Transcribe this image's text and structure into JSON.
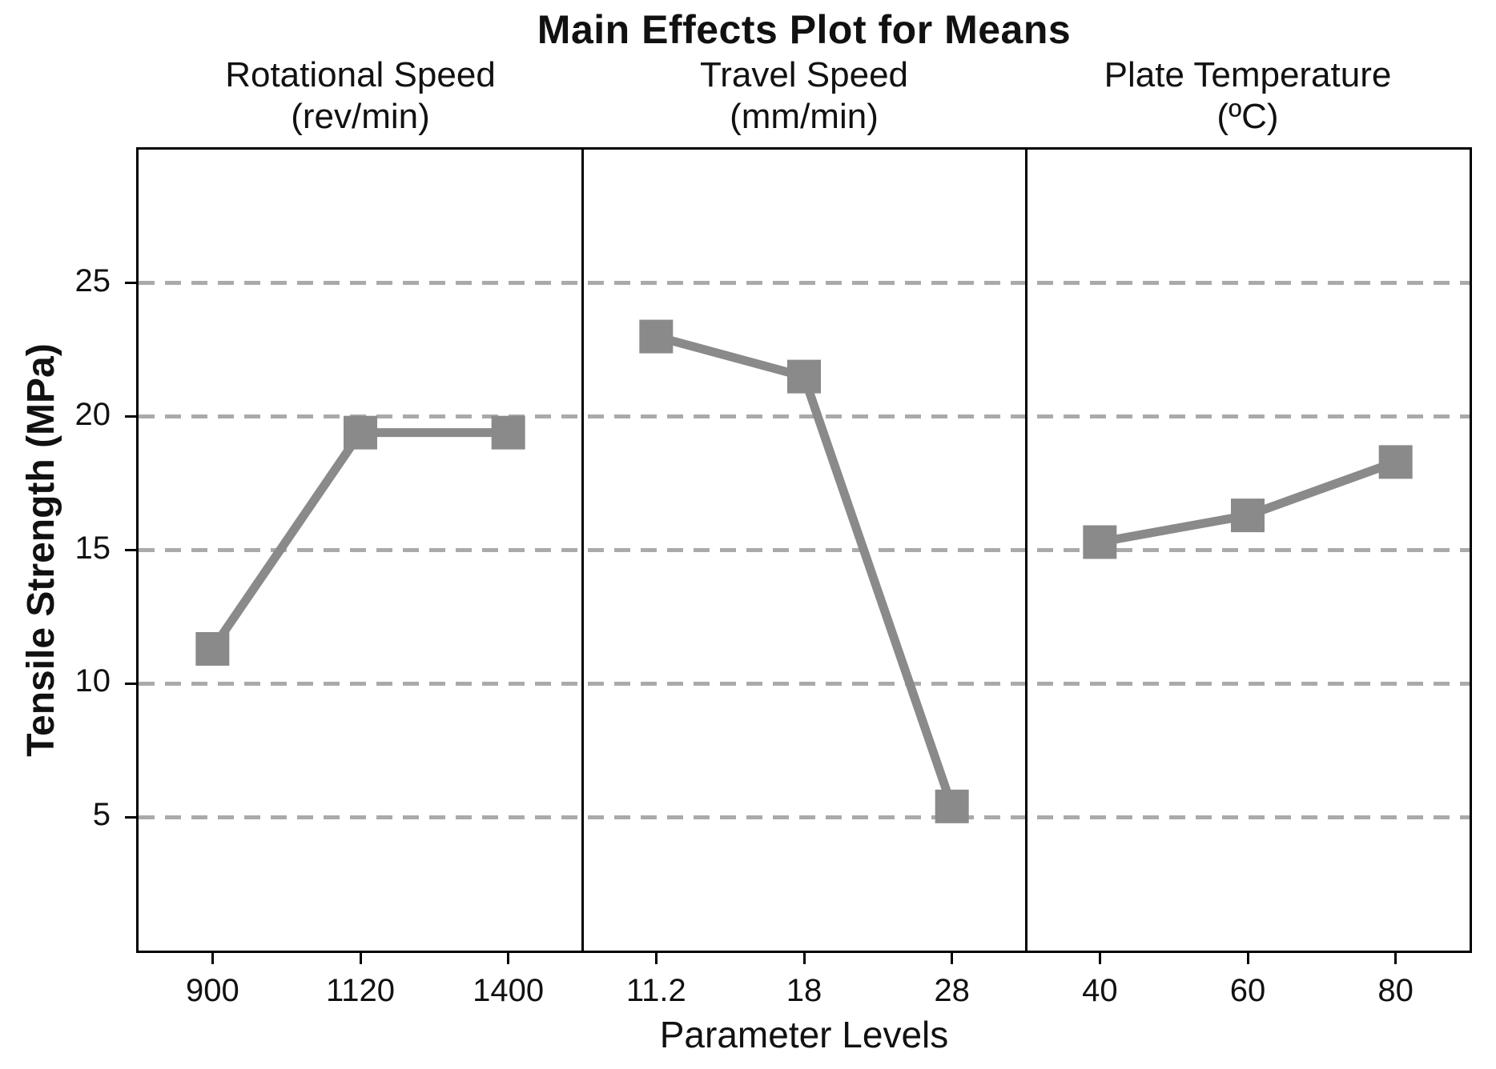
{
  "chart_data": {
    "type": "line",
    "title": "Main Effects Plot for Means",
    "xlabel": "Parameter Levels",
    "ylabel": "Tensile Strength (MPa)",
    "ylim": [
      0,
      30
    ],
    "yticks": [
      5,
      10,
      15,
      20,
      25
    ],
    "grid": "horizontal-dashed",
    "legend_position": "none",
    "marker": "square",
    "line_color": "#8a8a8a",
    "grid_color": "#aaaaaa",
    "axis_color": "#000000",
    "background_color": "#ffffff",
    "panels": [
      {
        "title_line1": "Rotational Speed",
        "title_line2": "(rev/min)",
        "categories": [
          "900",
          "1120",
          "1400"
        ],
        "values": [
          11.3,
          19.4,
          19.4
        ]
      },
      {
        "title_line1": "Travel Speed",
        "title_line2": "(mm/min)",
        "categories": [
          "11.2",
          "18",
          "28"
        ],
        "values": [
          23.0,
          21.5,
          5.4
        ]
      },
      {
        "title_line1": "Plate Temperature",
        "title_line2": "(ºC)",
        "categories": [
          "40",
          "60",
          "80"
        ],
        "values": [
          15.3,
          16.3,
          18.3
        ]
      }
    ]
  }
}
